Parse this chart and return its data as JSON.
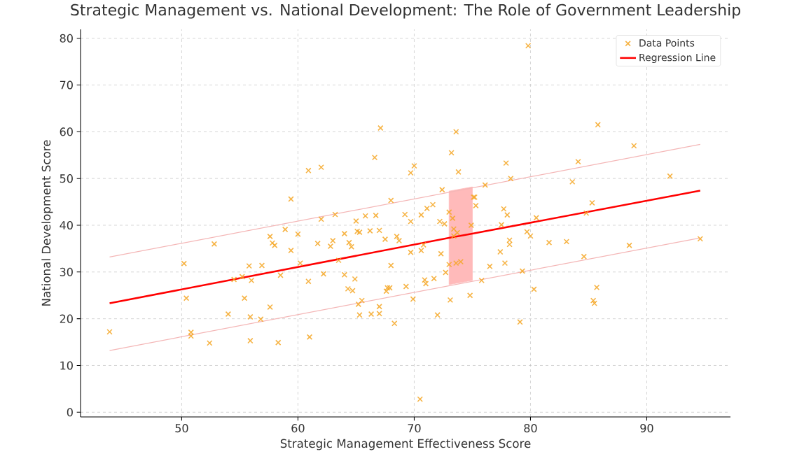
{
  "chart_data": {
    "type": "scatter",
    "title": "Strategic Management vs. National Development: The Role of Government Leadership",
    "xlabel": "Strategic Management Effectiveness Score",
    "ylabel": "National Development Score",
    "xlim": [
      41.3,
      97.2
    ],
    "ylim": [
      -1,
      81.9
    ],
    "xticks": [
      50,
      60,
      70,
      80,
      90
    ],
    "yticks": [
      0,
      10,
      20,
      30,
      40,
      50,
      60,
      70,
      80
    ],
    "grid": true,
    "legend": "top right",
    "series": [
      {
        "name": "Data Points",
        "color": "#f5a623",
        "marker": "cross",
        "x": [
          43.8,
          50.2,
          50.4,
          50.8,
          50.8,
          52.4,
          52.8,
          54.0,
          54.5,
          55.2,
          55.4,
          55.8,
          55.9,
          55.9,
          56.0,
          56.8,
          56.9,
          57.6,
          57.6,
          57.8,
          58.0,
          58.3,
          58.5,
          58.9,
          59.4,
          59.4,
          60.0,
          60.2,
          60.9,
          60.9,
          61.0,
          61.7,
          62.0,
          62.0,
          62.2,
          62.8,
          63.0,
          63.2,
          63.5,
          64.0,
          64.0,
          64.3,
          64.4,
          64.6,
          64.7,
          64.9,
          65.0,
          65.1,
          65.2,
          65.3,
          65.3,
          65.5,
          65.8,
          66.2,
          66.3,
          66.6,
          66.7,
          67.0,
          67.0,
          67.0,
          67.1,
          67.5,
          67.6,
          67.7,
          67.9,
          68.0,
          68.0,
          68.3,
          68.5,
          68.7,
          69.2,
          69.3,
          69.7,
          69.7,
          69.7,
          69.9,
          70.0,
          70.5,
          70.6,
          70.6,
          70.8,
          70.9,
          71.0,
          71.1,
          71.6,
          71.7,
          72.0,
          72.2,
          72.3,
          72.4,
          72.6,
          72.7,
          73.0,
          73.0,
          73.1,
          73.2,
          73.3,
          73.4,
          73.4,
          73.6,
          73.7,
          73.6,
          73.8,
          74.0,
          74.9,
          75.1,
          75.2,
          75.3,
          74.8,
          75.8,
          76.1,
          76.5,
          77.4,
          77.5,
          77.7,
          77.9,
          77.8,
          78.0,
          78.2,
          78.2,
          78.3,
          79.1,
          79.3,
          79.7,
          79.8,
          80.0,
          80.3,
          80.5,
          81.6,
          83.1,
          83.6,
          84.1,
          84.6,
          84.8,
          85.3,
          85.4,
          85.5,
          85.7,
          85.8,
          88.5,
          88.9,
          92.0,
          94.6
        ],
        "values": [
          17.2,
          31.8,
          24.4,
          17.1,
          16.3,
          14.8,
          36.0,
          21.0,
          28.4,
          29.0,
          24.4,
          31.3,
          20.4,
          15.3,
          28.2,
          19.9,
          31.4,
          37.6,
          22.5,
          36.2,
          35.7,
          14.9,
          29.3,
          39.1,
          45.6,
          34.6,
          38.1,
          31.9,
          51.7,
          28.0,
          16.1,
          36.1,
          52.4,
          41.3,
          29.6,
          35.5,
          36.7,
          42.3,
          32.5,
          38.2,
          29.4,
          26.4,
          36.3,
          35.4,
          26.0,
          28.5,
          40.9,
          38.7,
          23.1,
          38.5,
          20.8,
          23.9,
          42.0,
          38.8,
          21.0,
          54.5,
          42.1,
          38.9,
          22.6,
          21.1,
          60.8,
          37.0,
          25.9,
          26.6,
          26.6,
          45.3,
          31.4,
          19.0,
          37.6,
          36.7,
          42.3,
          26.9,
          51.2,
          40.8,
          34.2,
          24.2,
          52.7,
          2.8,
          42.2,
          34.6,
          35.8,
          28.3,
          27.5,
          43.6,
          44.4,
          28.6,
          20.8,
          40.8,
          33.9,
          47.6,
          40.3,
          29.9,
          42.8,
          31.6,
          24.0,
          55.5,
          41.5,
          39.2,
          37.7,
          60.0,
          38.4,
          31.9,
          51.4,
          32.2,
          40.0,
          46.0,
          46.0,
          44.2,
          25.0,
          28.2,
          48.6,
          31.2,
          34.3,
          40.1,
          43.5,
          53.3,
          31.9,
          42.2,
          35.9,
          36.8,
          50.0,
          19.3,
          30.2,
          38.6,
          78.4,
          37.7,
          26.3,
          41.6,
          36.3,
          36.5,
          49.3,
          53.6,
          33.3,
          42.6,
          44.8,
          23.9,
          23.3,
          26.7,
          61.5,
          35.7,
          57.0,
          50.5,
          37.1
        ]
      },
      {
        "name": "Regression Line",
        "type": "line",
        "color": "#ff0000",
        "marker": "none",
        "x": [
          43.8,
          73,
          75,
          94.6
        ],
        "values": [
          23.3,
          37.3,
          38.2,
          47.4
        ],
        "lower": [
          null,
          27.3,
          28.2,
          null
        ],
        "upper": [
          null,
          47.3,
          48.2,
          null
        ]
      },
      {
        "type": "line",
        "color": "#f4b6b6",
        "marker": "none",
        "x": [
          43.8,
          94.6
        ],
        "values": [
          33.2,
          57.3
        ]
      },
      {
        "type": "line",
        "color": "#f4b6b6",
        "marker": "none",
        "x": [
          43.8,
          94.6
        ],
        "values": [
          13.2,
          37.3
        ]
      }
    ]
  }
}
